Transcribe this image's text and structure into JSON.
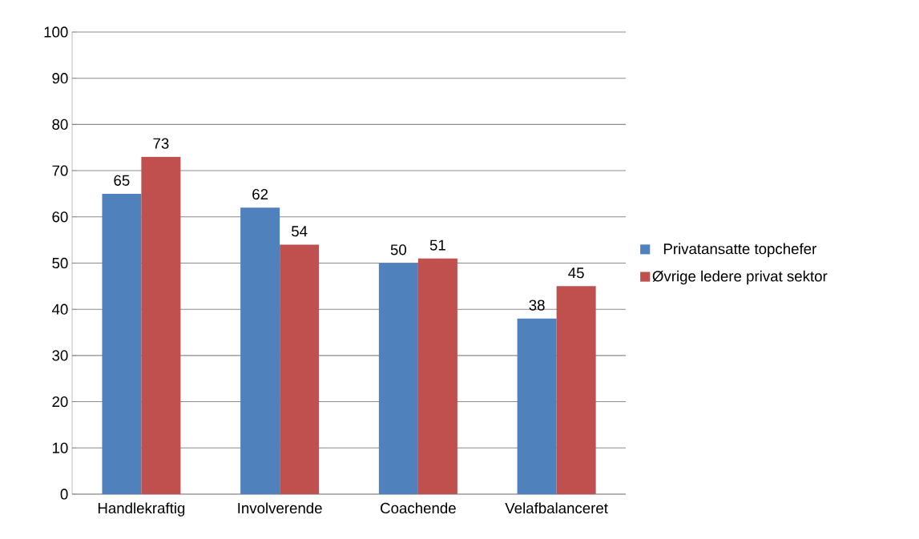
{
  "chart_data": {
    "type": "bar",
    "categories": [
      "Handlekraftig",
      "Involverende",
      "Coachende",
      "Velafbalanceret"
    ],
    "series": [
      {
        "name": "Privatansatte topchefer",
        "color": "#4f81bd",
        "values": [
          65,
          62,
          50,
          38
        ]
      },
      {
        "name": "Øvrige ledere privat sektor",
        "color": "#c0504d",
        "values": [
          73,
          54,
          51,
          45
        ]
      }
    ],
    "ylim": [
      0,
      100
    ],
    "yticks": [
      0,
      10,
      20,
      30,
      40,
      50,
      60,
      70,
      80,
      90,
      100
    ],
    "grid": "y",
    "legend": "right",
    "data_labels": true
  }
}
